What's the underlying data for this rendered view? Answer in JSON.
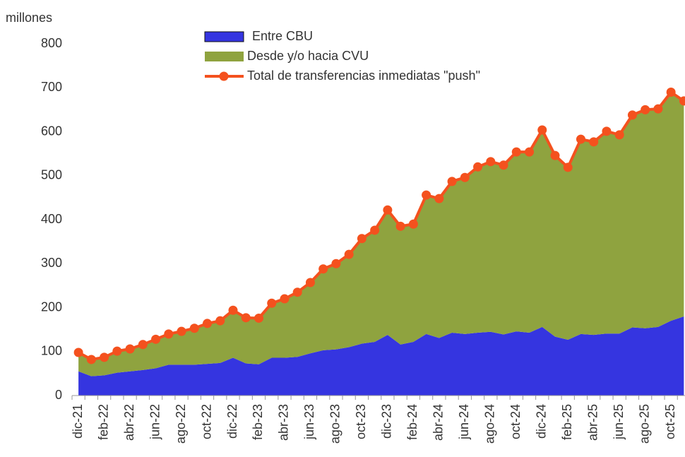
{
  "chart_data": {
    "type": "stacked-area-line",
    "ylabel": "millones",
    "categories": [
      "dic-21",
      null,
      "feb-22",
      null,
      "abr-22",
      null,
      "jun-22",
      null,
      "ago-22",
      null,
      "oct-22",
      null,
      "dic-22",
      null,
      "feb-23",
      null,
      "abr-23",
      null,
      "jun-23",
      null,
      "ago-23",
      null,
      "oct-23",
      null,
      "dic-23",
      null,
      "feb-24",
      null,
      "abr-24",
      null,
      "jun-24",
      null,
      "ago-24",
      null,
      "oct-24",
      null,
      "dic-24",
      null,
      "feb-25",
      null,
      "abr-25",
      null,
      "jun-25",
      null,
      "ago-25",
      null,
      "oct-25",
      null
    ],
    "series": [
      {
        "name": "Entre CBU",
        "color": "#3535e0",
        "kind": "area",
        "values": [
          55,
          44,
          46,
          52,
          55,
          58,
          62,
          70,
          70,
          70,
          72,
          74,
          86,
          73,
          71,
          86,
          86,
          88,
          96,
          103,
          105,
          110,
          118,
          122,
          138,
          116,
          122,
          140,
          131,
          143,
          140,
          143,
          145,
          139,
          146,
          143,
          156,
          134,
          127,
          140,
          138,
          141,
          141,
          155,
          153,
          156,
          170,
          180
        ]
      },
      {
        "name": "Desde y/o hacia CVU",
        "color": "#8fa33f",
        "kind": "area",
        "values": [
          43,
          38,
          41,
          49,
          51,
          58,
          66,
          70,
          76,
          83,
          92,
          96,
          108,
          104,
          105,
          124,
          134,
          147,
          161,
          185,
          195,
          211,
          239,
          254,
          284,
          269,
          268,
          316,
          317,
          344,
          356,
          377,
          387,
          385,
          408,
          411,
          448,
          412,
          392,
          443,
          439,
          460,
          452,
          483,
          497,
          496,
          520,
          490
        ]
      },
      {
        "name": "Total de transferencias inmediatas \"push\"",
        "color": "#f4511e",
        "kind": "line",
        "values": [
          98,
          82,
          87,
          101,
          106,
          116,
          128,
          140,
          146,
          153,
          164,
          170,
          194,
          177,
          176,
          210,
          220,
          235,
          257,
          288,
          300,
          321,
          357,
          376,
          422,
          385,
          390,
          456,
          448,
          487,
          496,
          520,
          532,
          524,
          554,
          554,
          604,
          546,
          519,
          583,
          577,
          601,
          593,
          638,
          650,
          652,
          690,
          670
        ]
      }
    ],
    "ylim": [
      0,
      800
    ],
    "yticks": [
      0,
      100,
      200,
      300,
      400,
      500,
      600,
      700,
      800
    ],
    "grid": false
  }
}
